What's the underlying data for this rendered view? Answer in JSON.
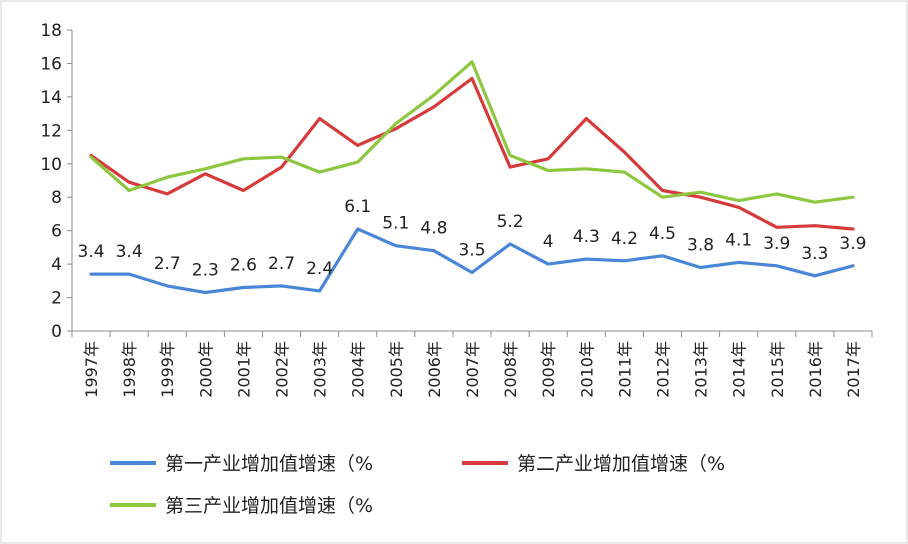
{
  "chart_data": {
    "type": "line",
    "x": [
      "1997年",
      "1998年",
      "1999年",
      "2000年",
      "2001年",
      "2002年",
      "2003年",
      "2004年",
      "2005年",
      "2006年",
      "2007年",
      "2008年",
      "2009年",
      "2010年",
      "2011年",
      "2012年",
      "2013年",
      "2014年",
      "2015年",
      "2016年",
      "2017年"
    ],
    "ylim": [
      0,
      18
    ],
    "yticks": [
      0,
      2,
      4,
      6,
      8,
      10,
      12,
      14,
      16,
      18
    ],
    "grid": false,
    "legend_position": "bottom",
    "series": [
      {
        "name": "第一产业增加值增速（%",
        "color": "#4a86d8",
        "values": [
          3.4,
          3.4,
          2.7,
          2.3,
          2.6,
          2.7,
          2.4,
          6.1,
          5.1,
          4.8,
          3.5,
          5.2,
          4.0,
          4.3,
          4.2,
          4.5,
          3.8,
          4.1,
          3.9,
          3.3,
          3.9
        ],
        "data_labels": [
          "3.4",
          "3.4",
          "2.7",
          "2.3",
          "2.6",
          "2.7",
          "2.4",
          "6.1",
          "5.1",
          "4.8",
          "3.5",
          "5.2",
          "4",
          "4.3",
          "4.2",
          "4.5",
          "3.8",
          "4.1",
          "3.9",
          "3.3",
          "3.9"
        ]
      },
      {
        "name": "第二产业增加值增速（%",
        "color": "#d63a3a",
        "values": [
          10.5,
          8.9,
          8.2,
          9.4,
          8.4,
          9.8,
          12.7,
          11.1,
          12.1,
          13.4,
          15.1,
          9.8,
          10.3,
          12.7,
          10.7,
          8.4,
          8.0,
          7.4,
          6.2,
          6.3,
          6.1
        ]
      },
      {
        "name": "第三产业增加值增速（%",
        "color": "#8dc63f",
        "values": [
          10.4,
          8.4,
          9.2,
          9.7,
          10.3,
          10.4,
          9.5,
          10.1,
          12.4,
          14.1,
          16.1,
          10.5,
          9.6,
          9.7,
          9.5,
          8.0,
          8.3,
          7.8,
          8.2,
          7.7,
          8.0
        ]
      }
    ]
  }
}
